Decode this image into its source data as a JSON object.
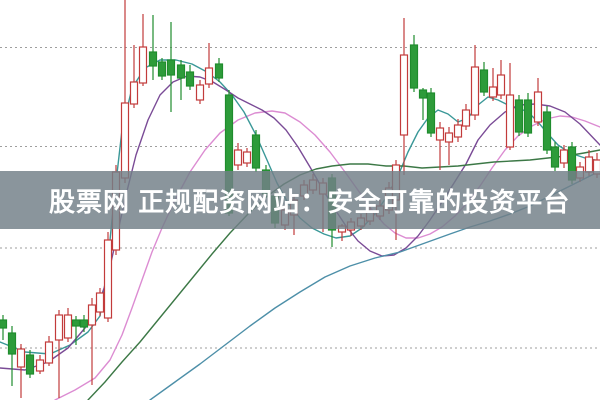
{
  "banner": {
    "text": "股票网 正规配资网站：安全可靠的投资平台",
    "bg_rgba": "rgba(114,128,136,0.83)",
    "text_color": "#ffffff"
  },
  "chart_data": {
    "type": "candlestick",
    "title": "",
    "xlabel": "",
    "ylabel": "",
    "axis_labels_visible": false,
    "coordinate_space": "pixels, 600x400, y down",
    "background": "#ffffff",
    "grid": {
      "style": "dotted",
      "color": "#9e9e9e",
      "dasharray": "2 3",
      "horizontal_lines_y": [
        47.5,
        146.5,
        248,
        348
      ]
    },
    "colors": {
      "up_candle": "#c23b3b",
      "up_fill": "#ffffff",
      "down_candle": "#1f8c2d",
      "down_fill": "#2d9b3a"
    },
    "candle_width": 7,
    "candles_note": "each = [xCenter, wickTop, bodyTop, bodyBottom, wickBottom, dir] dir u=up(red hollow) d=down(green)",
    "candles": [
      [
        3,
        315,
        320,
        328,
        340,
        "d"
      ],
      [
        12,
        326,
        333,
        354,
        386,
        "d"
      ],
      [
        21,
        344,
        349,
        367,
        398,
        "u"
      ],
      [
        30,
        350,
        355,
        374,
        378,
        "d"
      ],
      [
        40,
        355,
        360,
        371,
        374,
        "u"
      ],
      [
        49,
        336,
        342,
        363,
        366,
        "u"
      ],
      [
        59,
        310,
        315,
        340,
        398,
        "u"
      ],
      [
        68,
        308,
        315,
        338,
        342,
        "u"
      ],
      [
        76,
        316,
        320,
        326,
        345,
        "d"
      ],
      [
        84,
        315,
        320,
        327,
        332,
        "d"
      ],
      [
        92,
        298,
        305,
        325,
        385,
        "u"
      ],
      [
        100,
        288,
        293,
        312,
        316,
        "u"
      ],
      [
        108,
        232,
        240,
        318,
        322,
        "u"
      ],
      [
        116,
        165,
        172,
        250,
        255,
        "u"
      ],
      [
        125,
        0,
        103,
        178,
        183,
        "u"
      ],
      [
        134,
        45,
        82,
        104,
        108,
        "u"
      ],
      [
        143,
        14,
        47,
        83,
        86,
        "u"
      ],
      [
        153,
        15,
        52,
        66,
        80,
        "d"
      ],
      [
        162,
        58,
        62,
        76,
        80,
        "d"
      ],
      [
        171,
        22,
        60,
        75,
        112,
        "d"
      ],
      [
        181,
        60,
        65,
        78,
        100,
        "d"
      ],
      [
        190,
        65,
        72,
        86,
        90,
        "d"
      ],
      [
        200,
        80,
        85,
        100,
        104,
        "u"
      ],
      [
        209,
        43,
        68,
        84,
        88,
        "u"
      ],
      [
        219,
        58,
        64,
        78,
        82,
        "d"
      ],
      [
        229,
        90,
        95,
        213,
        216,
        "d"
      ],
      [
        238,
        143,
        150,
        165,
        170,
        "u"
      ],
      [
        247,
        148,
        152,
        163,
        167,
        "u"
      ],
      [
        256,
        130,
        135,
        168,
        172,
        "d"
      ],
      [
        266,
        165,
        170,
        194,
        198,
        "d"
      ],
      [
        275,
        192,
        196,
        223,
        228,
        "d"
      ],
      [
        285,
        205,
        210,
        225,
        230,
        "u"
      ],
      [
        294,
        195,
        200,
        215,
        235,
        "u"
      ],
      [
        304,
        180,
        185,
        196,
        200,
        "u"
      ],
      [
        313,
        174,
        180,
        190,
        194,
        "u"
      ],
      [
        323,
        178,
        183,
        194,
        232,
        "u"
      ],
      [
        332,
        174,
        178,
        230,
        247,
        "d"
      ],
      [
        342,
        224,
        226,
        232,
        241,
        "u"
      ],
      [
        351,
        218,
        222,
        230,
        236,
        "u"
      ],
      [
        361,
        214,
        218,
        226,
        230,
        "u"
      ],
      [
        370,
        207,
        212,
        221,
        225,
        "u"
      ],
      [
        380,
        200,
        206,
        216,
        220,
        "u"
      ],
      [
        389,
        182,
        188,
        210,
        214,
        "u"
      ],
      [
        396,
        160,
        165,
        200,
        240,
        "u"
      ],
      [
        404,
        18,
        55,
        135,
        175,
        "u"
      ],
      [
        414,
        35,
        45,
        88,
        92,
        "d"
      ],
      [
        423,
        88,
        90,
        98,
        120,
        "d"
      ],
      [
        431,
        88,
        93,
        133,
        137,
        "d"
      ],
      [
        440,
        122,
        128,
        140,
        170,
        "u"
      ],
      [
        449,
        127,
        133,
        142,
        165,
        "u"
      ],
      [
        458,
        119,
        125,
        137,
        142,
        "u"
      ],
      [
        466,
        104,
        110,
        126,
        130,
        "u"
      ],
      [
        475,
        45,
        67,
        115,
        120,
        "u"
      ],
      [
        484,
        62,
        70,
        92,
        96,
        "d"
      ],
      [
        493,
        68,
        87,
        97,
        101,
        "u"
      ],
      [
        501,
        60,
        75,
        95,
        99,
        "u"
      ],
      [
        510,
        63,
        95,
        147,
        150,
        "u"
      ],
      [
        519,
        95,
        100,
        132,
        136,
        "d"
      ],
      [
        528,
        93,
        100,
        133,
        137,
        "d"
      ],
      [
        538,
        78,
        92,
        122,
        126,
        "u"
      ],
      [
        547,
        106,
        112,
        150,
        154,
        "d"
      ],
      [
        555,
        142,
        147,
        167,
        171,
        "d"
      ],
      [
        564,
        145,
        150,
        163,
        168,
        "u"
      ],
      [
        572,
        142,
        147,
        180,
        184,
        "d"
      ],
      [
        580,
        162,
        167,
        178,
        182,
        "u"
      ],
      [
        589,
        150,
        157,
        172,
        176,
        "u"
      ],
      [
        597,
        153,
        160,
        174,
        178,
        "u"
      ]
    ],
    "ma_lines": [
      {
        "name": "ma-pink",
        "color": "#dc8cd2",
        "points": [
          [
            55,
            400
          ],
          [
            75,
            390
          ],
          [
            95,
            378
          ],
          [
            110,
            360
          ],
          [
            122,
            335
          ],
          [
            132,
            308
          ],
          [
            142,
            280
          ],
          [
            152,
            252
          ],
          [
            162,
            228
          ],
          [
            175,
            200
          ],
          [
            190,
            172
          ],
          [
            205,
            150
          ],
          [
            220,
            133
          ],
          [
            238,
            120
          ],
          [
            255,
            113
          ],
          [
            272,
            111
          ],
          [
            285,
            113
          ],
          [
            300,
            122
          ],
          [
            315,
            135
          ],
          [
            330,
            152
          ],
          [
            345,
            172
          ],
          [
            360,
            193
          ],
          [
            372,
            210
          ],
          [
            384,
            224
          ],
          [
            395,
            233
          ],
          [
            406,
            238
          ],
          [
            418,
            238
          ],
          [
            430,
            234
          ],
          [
            442,
            227
          ],
          [
            455,
            216
          ],
          [
            468,
            202
          ],
          [
            480,
            186
          ],
          [
            492,
            168
          ],
          [
            505,
            150
          ],
          [
            518,
            136
          ],
          [
            532,
            126
          ],
          [
            546,
            119
          ],
          [
            560,
            116
          ],
          [
            572,
            117
          ],
          [
            585,
            121
          ],
          [
            600,
            127
          ]
        ]
      },
      {
        "name": "ma-teal",
        "color": "#3a9898",
        "points": [
          [
            0,
            342
          ],
          [
            25,
            352
          ],
          [
            50,
            354
          ],
          [
            70,
            345
          ],
          [
            88,
            332
          ],
          [
            100,
            316
          ],
          [
            107,
            270
          ],
          [
            114,
            200
          ],
          [
            122,
            130
          ],
          [
            132,
            88
          ],
          [
            145,
            68
          ],
          [
            160,
            60
          ],
          [
            176,
            60
          ],
          [
            192,
            64
          ],
          [
            207,
            72
          ],
          [
            220,
            82
          ],
          [
            232,
            95
          ],
          [
            244,
            112
          ],
          [
            256,
            135
          ],
          [
            267,
            160
          ],
          [
            277,
            183
          ],
          [
            288,
            203
          ],
          [
            300,
            218
          ],
          [
            312,
            228
          ],
          [
            324,
            234
          ],
          [
            336,
            238
          ],
          [
            350,
            236
          ],
          [
            362,
            228
          ],
          [
            374,
            215
          ],
          [
            386,
            198
          ],
          [
            398,
            176
          ],
          [
            408,
            152
          ],
          [
            418,
            132
          ],
          [
            428,
            118
          ],
          [
            438,
            110
          ],
          [
            448,
            114
          ],
          [
            458,
            122
          ],
          [
            468,
            118
          ],
          [
            478,
            105
          ],
          [
            488,
            97
          ],
          [
            498,
            100
          ],
          [
            508,
            105
          ],
          [
            518,
            108
          ],
          [
            528,
            112
          ],
          [
            538,
            122
          ],
          [
            548,
            134
          ],
          [
            558,
            145
          ],
          [
            570,
            153
          ],
          [
            585,
            158
          ],
          [
            600,
            161
          ]
        ]
      },
      {
        "name": "ma-purple",
        "color": "#7a4b96",
        "points": [
          [
            0,
            368
          ],
          [
            25,
            370
          ],
          [
            48,
            362
          ],
          [
            68,
            348
          ],
          [
            85,
            328
          ],
          [
            98,
            305
          ],
          [
            107,
            280
          ],
          [
            116,
            240
          ],
          [
            126,
            195
          ],
          [
            136,
            155
          ],
          [
            148,
            120
          ],
          [
            160,
            95
          ],
          [
            173,
            82
          ],
          [
            187,
            76
          ],
          [
            200,
            77
          ],
          [
            213,
            82
          ],
          [
            226,
            90
          ],
          [
            238,
            98
          ],
          [
            250,
            104
          ],
          [
            262,
            110
          ],
          [
            274,
            118
          ],
          [
            286,
            130
          ],
          [
            298,
            147
          ],
          [
            310,
            167
          ],
          [
            322,
            188
          ],
          [
            334,
            208
          ],
          [
            346,
            226
          ],
          [
            358,
            241
          ],
          [
            370,
            251
          ],
          [
            382,
            256
          ],
          [
            394,
            255
          ],
          [
            406,
            248
          ],
          [
            418,
            236
          ],
          [
            430,
            220
          ],
          [
            442,
            202
          ],
          [
            454,
            183
          ],
          [
            466,
            164
          ],
          [
            478,
            140
          ],
          [
            490,
            125
          ],
          [
            505,
            112
          ],
          [
            520,
            105
          ],
          [
            535,
            104
          ],
          [
            550,
            106
          ],
          [
            565,
            112
          ],
          [
            580,
            124
          ],
          [
            600,
            145
          ]
        ]
      },
      {
        "name": "ma-green",
        "color": "#3c7846",
        "points": [
          [
            88,
            400
          ],
          [
            105,
            382
          ],
          [
            122,
            362
          ],
          [
            140,
            342
          ],
          [
            158,
            320
          ],
          [
            176,
            298
          ],
          [
            194,
            276
          ],
          [
            212,
            254
          ],
          [
            230,
            233
          ],
          [
            248,
            214
          ],
          [
            266,
            197
          ],
          [
            284,
            184
          ],
          [
            300,
            175
          ],
          [
            316,
            169
          ],
          [
            332,
            166
          ],
          [
            350,
            164
          ],
          [
            368,
            164
          ],
          [
            386,
            166
          ],
          [
            404,
            166
          ],
          [
            422,
            168
          ],
          [
            440,
            167
          ],
          [
            458,
            166
          ],
          [
            476,
            164
          ],
          [
            494,
            162
          ],
          [
            512,
            161
          ],
          [
            530,
            160
          ],
          [
            548,
            158
          ],
          [
            566,
            156
          ],
          [
            584,
            153
          ],
          [
            600,
            150
          ]
        ]
      },
      {
        "name": "ma-blue",
        "color": "#4d8fa8",
        "points": [
          [
            150,
            400
          ],
          [
            175,
            382
          ],
          [
            200,
            364
          ],
          [
            225,
            345
          ],
          [
            250,
            326
          ],
          [
            275,
            308
          ],
          [
            300,
            292
          ],
          [
            325,
            277
          ],
          [
            350,
            266
          ],
          [
            375,
            258
          ],
          [
            400,
            252
          ],
          [
            425,
            243
          ],
          [
            450,
            234
          ],
          [
            470,
            227
          ],
          [
            490,
            221
          ],
          [
            510,
            214
          ],
          [
            530,
            206
          ],
          [
            550,
            196
          ],
          [
            570,
            186
          ],
          [
            590,
            176
          ],
          [
            600,
            171
          ]
        ]
      }
    ]
  }
}
